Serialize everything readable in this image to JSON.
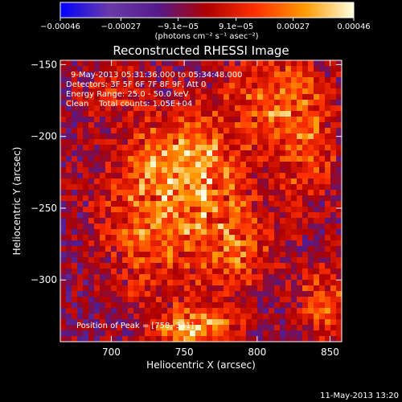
{
  "chart_data": {
    "type": "heatmap",
    "title": "Reconstructed RHESSI Image",
    "xlabel": "Heliocentric X (arcsec)",
    "ylabel": "Heliocentric Y (arcsec)",
    "xlim": [
      665,
      858
    ],
    "ylim": [
      -343,
      -147
    ],
    "x_ticks": [
      700,
      750,
      800,
      850
    ],
    "x_tick_labels": [
      "700",
      "750",
      "800",
      "850"
    ],
    "y_ticks": [
      -150,
      -200,
      -250,
      -300
    ],
    "y_tick_labels": [
      "−150",
      "−200",
      "−250",
      "−300"
    ],
    "colorbar": {
      "ticks": [
        -0.00046,
        -0.00027,
        -9.1e-05,
        9.1e-05,
        0.00027,
        0.00046
      ],
      "tick_labels": [
        "−0.00046",
        "−0.00027",
        "−9.1e−05",
        "9.1e−05",
        "0.00027",
        "0.00046"
      ],
      "range": [
        -0.00046,
        0.00046
      ],
      "colormap": [
        "#0000ff",
        "#6a3aa8",
        "#551a8b",
        "#b00000",
        "#ff3000",
        "#ff9a00",
        "#ffffe0"
      ]
    },
    "units_text": "(photons cm⁻² s⁻¹ asec⁻²)",
    "annotations": [
      "9-May-2013 05:31:36.000 to 05:34:48.000",
      "Detectors: 3F 5F 6F 7F 8F 9F, Att 0",
      "Energy Range: 25.0 - 50.0 keV",
      "Clean    Total counts: 1.05E+04"
    ],
    "peak_label": "Position of Peak = [758,-331]",
    "peak": [
      758,
      -331
    ],
    "hot_regions": [
      {
        "x": 760,
        "y": -245,
        "sx": 28,
        "sy": 40,
        "amp": 0.00034
      },
      {
        "x": 740,
        "y": -215,
        "sx": 22,
        "sy": 18,
        "amp": 0.00026
      },
      {
        "x": 815,
        "y": -175,
        "sx": 24,
        "sy": 22,
        "amp": 0.0003
      },
      {
        "x": 835,
        "y": -215,
        "sx": 14,
        "sy": 22,
        "amp": 0.00024
      },
      {
        "x": 715,
        "y": -270,
        "sx": 20,
        "sy": 30,
        "amp": 0.00024
      },
      {
        "x": 758,
        "y": -333,
        "sx": 18,
        "sy": 10,
        "amp": 0.00046
      },
      {
        "x": 845,
        "y": -315,
        "sx": 12,
        "sy": 18,
        "amp": 0.00028
      },
      {
        "x": 790,
        "y": -280,
        "sx": 16,
        "sy": 16,
        "amp": 0.0002
      },
      {
        "x": 700,
        "y": -170,
        "sx": 14,
        "sy": 14,
        "amp": 0.00016
      }
    ],
    "grid": false
  },
  "footer": {
    "timestamp": "11-May-2013 13:20"
  }
}
